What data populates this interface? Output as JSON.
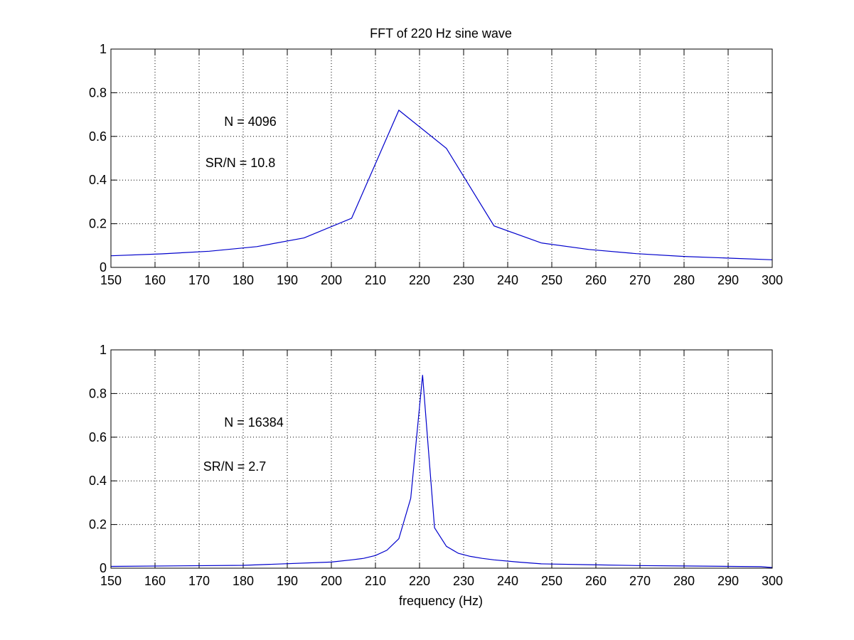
{
  "figure": {
    "title": "FFT of 220 Hz sine wave",
    "xlabel": "frequency (Hz)"
  },
  "colors": {
    "line": "#0000cc",
    "axes": "#000000",
    "background": "#ffffff"
  },
  "chart_data": [
    {
      "type": "line",
      "title": "FFT of 220 Hz sine wave",
      "xlabel": "",
      "ylabel": "",
      "xlim": [
        150,
        300
      ],
      "ylim": [
        0,
        1
      ],
      "grid": true,
      "xticks": [
        150,
        160,
        170,
        180,
        190,
        200,
        210,
        220,
        230,
        240,
        250,
        260,
        270,
        280,
        290,
        300
      ],
      "yticks": [
        0,
        0.2,
        0.4,
        0.6,
        0.8,
        1
      ],
      "ytick_labels": [
        "0",
        "0.2",
        "0.4",
        "0.6",
        "0.8",
        "1"
      ],
      "annotations": [
        "N = 4096",
        "SR/N = 10.8"
      ],
      "series": [
        {
          "x": [
            150,
            161.5,
            172.3,
            183.1,
            193.8,
            204.6,
            215.3,
            226.1,
            236.9,
            247.6,
            258.4,
            269.2,
            279.9,
            290.7,
            300
          ],
          "y": [
            0.053,
            0.062,
            0.074,
            0.095,
            0.135,
            0.225,
            0.72,
            0.545,
            0.19,
            0.112,
            0.082,
            0.063,
            0.05,
            0.042,
            0.035
          ]
        }
      ]
    },
    {
      "type": "line",
      "title": "",
      "xlabel": "frequency (Hz)",
      "ylabel": "",
      "xlim": [
        150,
        300
      ],
      "ylim": [
        0,
        1
      ],
      "grid": true,
      "xticks": [
        150,
        160,
        170,
        180,
        190,
        200,
        210,
        220,
        230,
        240,
        250,
        260,
        270,
        280,
        290,
        300
      ],
      "yticks": [
        0,
        0.2,
        0.4,
        0.6,
        0.8,
        1
      ],
      "ytick_labels": [
        "0",
        "0.2",
        "0.4",
        "0.6",
        "0.8",
        "1"
      ],
      "annotations": [
        "N = 16384",
        "SR/N = 2.7"
      ],
      "series": [
        {
          "x": [
            150,
            180,
            200,
            204.6,
            207.3,
            210,
            212.6,
            215.3,
            218,
            220.7,
            223.4,
            226.1,
            228.8,
            231.5,
            234.2,
            236.9,
            242.3,
            247.6,
            258.4,
            269.2,
            280,
            290.7,
            297.4,
            300
          ],
          "y": [
            0.008,
            0.013,
            0.028,
            0.038,
            0.045,
            0.058,
            0.082,
            0.135,
            0.32,
            0.885,
            0.185,
            0.1,
            0.068,
            0.054,
            0.045,
            0.038,
            0.028,
            0.02,
            0.016,
            0.012,
            0.01,
            0.008,
            0.007,
            0.003
          ]
        }
      ]
    }
  ]
}
